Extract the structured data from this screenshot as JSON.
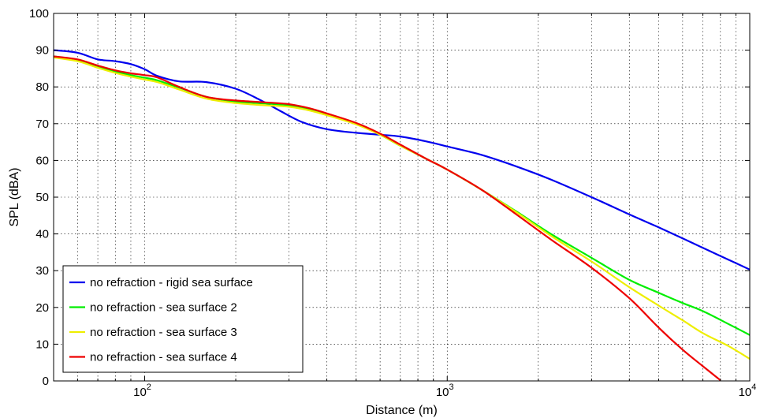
{
  "chart_data": {
    "type": "line",
    "xlabel": "Distance (m)",
    "ylabel": "SPL (dBA)",
    "x_scale": "log",
    "xlim": [
      50,
      10000
    ],
    "ylim": [
      0,
      100
    ],
    "grid": true,
    "legend_position": "bottom-left",
    "y_ticks": [
      "0",
      "10",
      "20",
      "30",
      "40",
      "50",
      "60",
      "70",
      "80",
      "90",
      "100"
    ],
    "x_ticks": [
      {
        "base": "10",
        "exp": "2"
      },
      {
        "base": "10",
        "exp": "3"
      },
      {
        "base": "10",
        "exp": "4"
      }
    ],
    "series": [
      {
        "name": "no refraction - rigid sea surface",
        "color": "#0000ee",
        "points": [
          [
            50,
            90
          ],
          [
            60,
            89.3
          ],
          [
            70,
            87.5
          ],
          [
            80,
            87
          ],
          [
            90,
            86.2
          ],
          [
            100,
            84.8
          ],
          [
            110,
            83
          ],
          [
            130,
            81.5
          ],
          [
            160,
            81.3
          ],
          [
            200,
            79.5
          ],
          [
            240,
            76.5
          ],
          [
            280,
            73.5
          ],
          [
            330,
            70.5
          ],
          [
            400,
            68.5
          ],
          [
            500,
            67.5
          ],
          [
            600,
            67
          ],
          [
            700,
            66.5
          ],
          [
            850,
            65.2
          ],
          [
            1000,
            63.8
          ],
          [
            1300,
            61.5
          ],
          [
            1700,
            58.3
          ],
          [
            2200,
            54.8
          ],
          [
            3000,
            50
          ],
          [
            4000,
            45.3
          ],
          [
            5000,
            41.8
          ],
          [
            6000,
            38.8
          ],
          [
            7000,
            36.2
          ],
          [
            8500,
            33
          ],
          [
            10000,
            30.3
          ]
        ]
      },
      {
        "name": "no refraction - sea surface 2",
        "color": "#00ee00",
        "points": [
          [
            50,
            88.3
          ],
          [
            60,
            87.3
          ],
          [
            70,
            85.5
          ],
          [
            80,
            84.2
          ],
          [
            90,
            83.2
          ],
          [
            100,
            82.5
          ],
          [
            110,
            81.8
          ],
          [
            130,
            79.8
          ],
          [
            160,
            77.3
          ],
          [
            200,
            76
          ],
          [
            250,
            75.5
          ],
          [
            300,
            75
          ],
          [
            350,
            74
          ],
          [
            400,
            72.5
          ],
          [
            500,
            70
          ],
          [
            600,
            67
          ],
          [
            700,
            64
          ],
          [
            850,
            60.5
          ],
          [
            1000,
            57.5
          ],
          [
            1300,
            52
          ],
          [
            1700,
            46
          ],
          [
            2200,
            40
          ],
          [
            3000,
            33.5
          ],
          [
            4000,
            27.5
          ],
          [
            5000,
            24
          ],
          [
            6000,
            21.2
          ],
          [
            7000,
            19
          ],
          [
            8500,
            15.5
          ],
          [
            10000,
            12.5
          ]
        ]
      },
      {
        "name": "no refraction - sea surface 3",
        "color": "#eeee00",
        "points": [
          [
            50,
            88
          ],
          [
            60,
            87
          ],
          [
            70,
            85.2
          ],
          [
            80,
            83.8
          ],
          [
            90,
            82.8
          ],
          [
            100,
            82
          ],
          [
            110,
            81.3
          ],
          [
            130,
            79.3
          ],
          [
            160,
            76.8
          ],
          [
            200,
            75.6
          ],
          [
            250,
            75
          ],
          [
            300,
            74.6
          ],
          [
            350,
            73.6
          ],
          [
            400,
            72.3
          ],
          [
            500,
            69.8
          ],
          [
            600,
            67
          ],
          [
            700,
            64
          ],
          [
            850,
            60.5
          ],
          [
            1000,
            57.5
          ],
          [
            1300,
            52
          ],
          [
            1700,
            45.8
          ],
          [
            2200,
            39.5
          ],
          [
            3000,
            32.5
          ],
          [
            4000,
            25.5
          ],
          [
            5000,
            20.5
          ],
          [
            6000,
            16.5
          ],
          [
            7000,
            13
          ],
          [
            8500,
            9.5
          ],
          [
            10000,
            6
          ]
        ]
      },
      {
        "name": "no refraction - sea surface 4",
        "color": "#ee0000",
        "points": [
          [
            50,
            88.3
          ],
          [
            60,
            87.5
          ],
          [
            70,
            85.8
          ],
          [
            80,
            84.5
          ],
          [
            90,
            83.7
          ],
          [
            100,
            83.2
          ],
          [
            110,
            82.6
          ],
          [
            130,
            80
          ],
          [
            160,
            77.3
          ],
          [
            200,
            76.3
          ],
          [
            250,
            75.8
          ],
          [
            300,
            75.3
          ],
          [
            350,
            74.2
          ],
          [
            400,
            72.8
          ],
          [
            500,
            70.2
          ],
          [
            600,
            67.3
          ],
          [
            700,
            64.3
          ],
          [
            850,
            60.5
          ],
          [
            1000,
            57.5
          ],
          [
            1300,
            52
          ],
          [
            1700,
            45.2
          ],
          [
            2200,
            38.5
          ],
          [
            3000,
            30.8
          ],
          [
            4000,
            22.5
          ],
          [
            5000,
            14.5
          ],
          [
            6000,
            8.5
          ],
          [
            7000,
            4
          ],
          [
            8000,
            0.2
          ]
        ]
      }
    ]
  }
}
